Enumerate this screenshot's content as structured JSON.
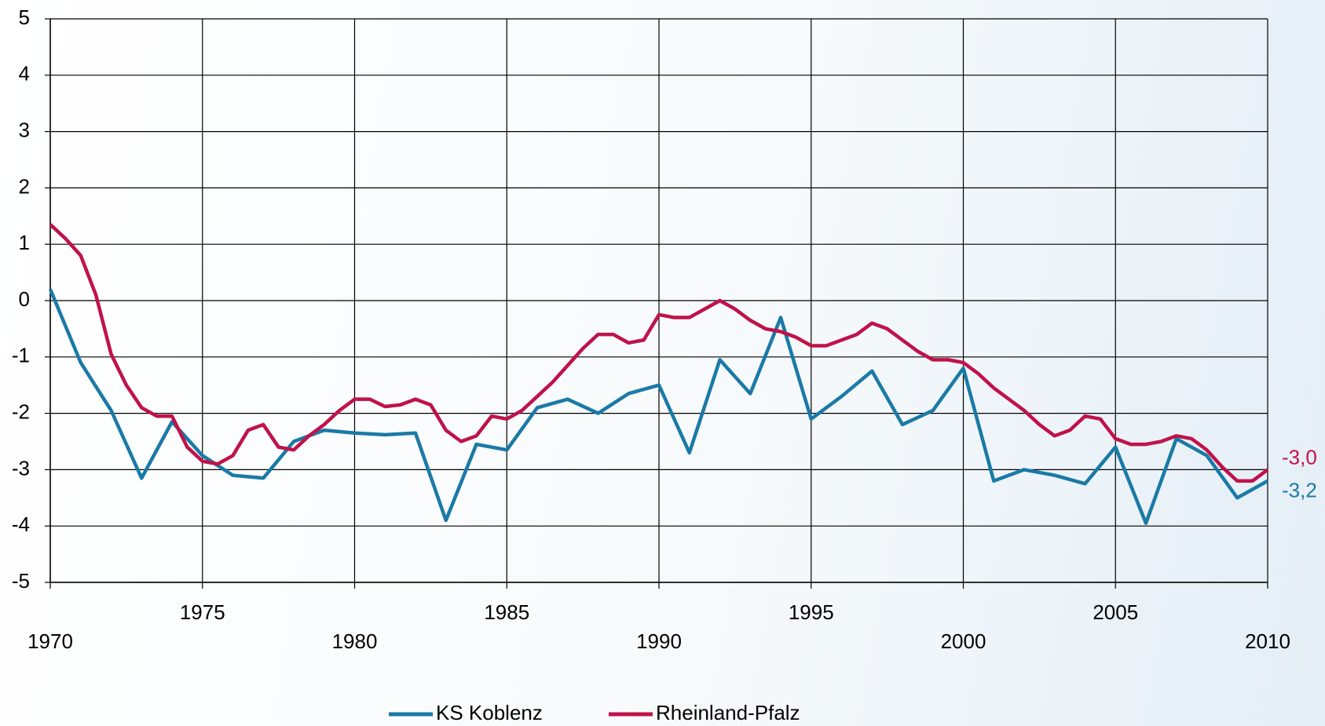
{
  "chart_data": {
    "type": "line",
    "xlim": [
      1970,
      2010
    ],
    "xticks": [
      1970,
      1975,
      1980,
      1985,
      1990,
      1995,
      2000,
      2005,
      2010
    ],
    "ylim": [
      -5,
      5
    ],
    "yticks": [
      -5,
      -4,
      -3,
      -2,
      -1,
      0,
      1,
      2,
      3,
      4,
      5
    ],
    "grid": true,
    "legend": "bottom",
    "series": [
      {
        "name": "KS Koblenz",
        "color": "#1a7aa6",
        "end_label": "-3,2",
        "x": [
          1970,
          1971,
          1972,
          1973,
          1974,
          1975,
          1976,
          1977,
          1978,
          1979,
          1980,
          1981,
          1982,
          1983,
          1984,
          1985,
          1986,
          1987,
          1988,
          1989,
          1990,
          1991,
          1992,
          1993,
          1994,
          1995,
          1996,
          1997,
          1998,
          1999,
          2000,
          2001,
          2002,
          2003,
          2004,
          2005,
          2006,
          2007,
          2008,
          2009,
          2010
        ],
        "values": [
          0.2,
          -1.1,
          -1.95,
          -3.15,
          -2.15,
          -2.75,
          -3.1,
          -3.15,
          -2.5,
          -2.3,
          -2.35,
          -2.38,
          -2.35,
          -3.9,
          -2.55,
          -2.65,
          -1.9,
          -1.75,
          -2.0,
          -1.65,
          -1.5,
          -2.7,
          -1.05,
          -1.65,
          -0.3,
          -2.1,
          -1.7,
          -1.25,
          -2.2,
          -1.95,
          -1.2,
          -3.2,
          -3.0,
          -3.1,
          -3.25,
          -2.6,
          -3.95,
          -2.45,
          -2.75,
          -3.5,
          -3.2
        ]
      },
      {
        "name": "Rheinland-Pfalz",
        "color": "#c0124a",
        "end_label": "-3,0",
        "x": [
          1970,
          1970.5,
          1971,
          1971.5,
          1972,
          1972.5,
          1973,
          1973.5,
          1974,
          1974.5,
          1975,
          1975.5,
          1976,
          1976.5,
          1977,
          1977.5,
          1978,
          1978.5,
          1979,
          1979.5,
          1980,
          1980.5,
          1981,
          1981.5,
          1982,
          1982.5,
          1983,
          1983.5,
          1984,
          1984.5,
          1985,
          1985.5,
          1986,
          1986.5,
          1987,
          1987.5,
          1988,
          1988.5,
          1989,
          1989.5,
          1990,
          1990.5,
          1991,
          1991.5,
          1992,
          1992.5,
          1993,
          1993.5,
          1994,
          1994.5,
          1995,
          1995.5,
          1996,
          1996.5,
          1997,
          1997.5,
          1998,
          1998.5,
          1999,
          1999.5,
          2000,
          2000.5,
          2001,
          2001.5,
          2002,
          2002.5,
          2003,
          2003.5,
          2004,
          2004.5,
          2005,
          2005.5,
          2006,
          2006.5,
          2007,
          2007.5,
          2008,
          2008.5,
          2009,
          2009.5,
          2010
        ],
        "values": [
          1.35,
          1.1,
          0.8,
          0.1,
          -0.95,
          -1.5,
          -1.9,
          -2.05,
          -2.05,
          -2.6,
          -2.85,
          -2.9,
          -2.75,
          -2.3,
          -2.2,
          -2.6,
          -2.65,
          -2.4,
          -2.2,
          -1.95,
          -1.75,
          -1.75,
          -1.88,
          -1.85,
          -1.75,
          -1.85,
          -2.3,
          -2.5,
          -2.4,
          -2.05,
          -2.1,
          -1.95,
          -1.7,
          -1.45,
          -1.15,
          -0.85,
          -0.6,
          -0.6,
          -0.75,
          -0.7,
          -0.25,
          -0.3,
          -0.3,
          -0.15,
          0.0,
          -0.15,
          -0.35,
          -0.5,
          -0.55,
          -0.65,
          -0.8,
          -0.8,
          -0.7,
          -0.6,
          -0.4,
          -0.5,
          -0.7,
          -0.9,
          -1.05,
          -1.05,
          -1.1,
          -1.3,
          -1.55,
          -1.75,
          -1.95,
          -2.2,
          -2.4,
          -2.3,
          -2.05,
          -2.1,
          -2.45,
          -2.55,
          -2.55,
          -2.5,
          -2.4,
          -2.45,
          -2.65,
          -2.95,
          -3.2,
          -3.2,
          -3.0
        ]
      }
    ]
  }
}
